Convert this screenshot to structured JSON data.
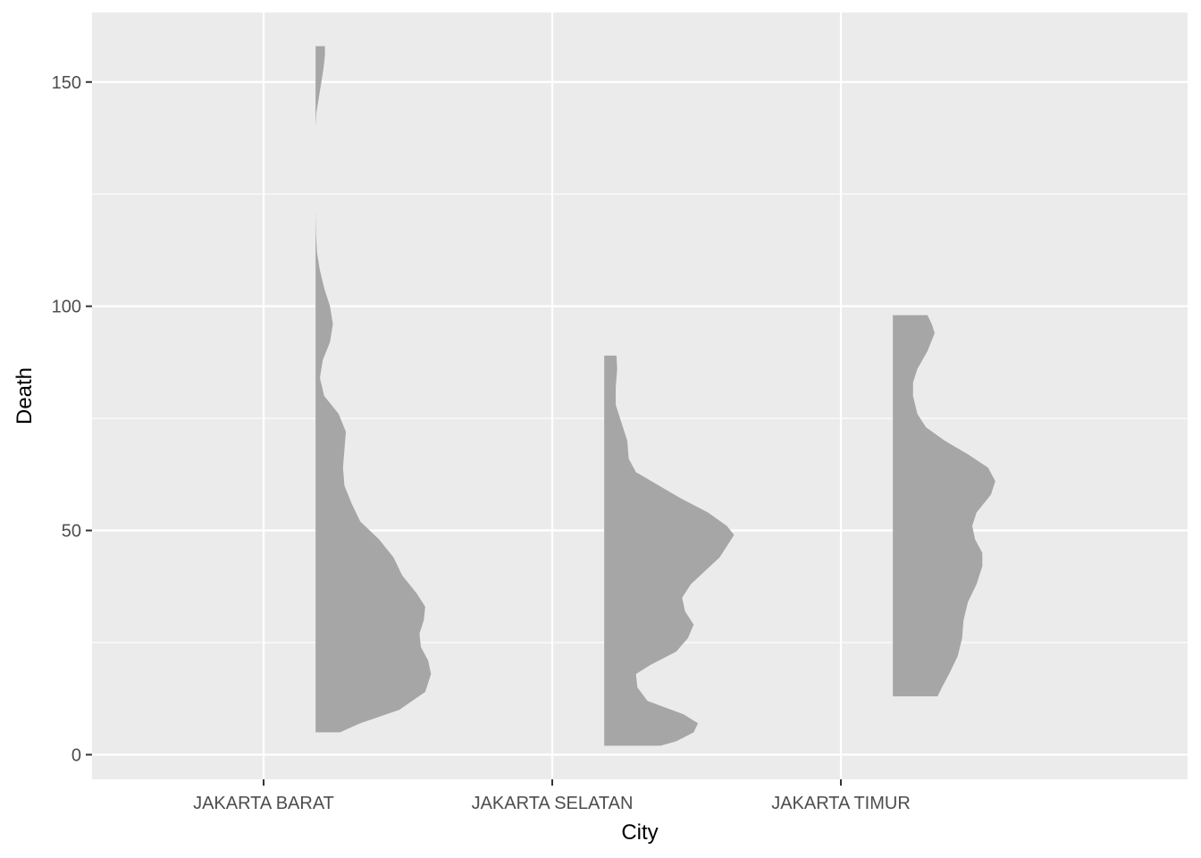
{
  "chart_data": {
    "type": "half-violin",
    "xlabel": "City",
    "ylabel": "Death",
    "categories": [
      "JAKARTA BARAT",
      "JAKARTA SELATAN",
      "JAKARTA TIMUR"
    ],
    "ylim": [
      -5.5,
      165.5
    ],
    "yticks": [
      0,
      50,
      100,
      150
    ],
    "grid": true,
    "legend": "none",
    "colors": {
      "panel": "#ebebeb",
      "grid": "#ffffff",
      "fill": "#a6a6a6",
      "tick_text": "#4d4d4d",
      "title_text": "#000000"
    },
    "series": [
      {
        "category": "JAKARTA BARAT",
        "y_min": 5,
        "y_max": 158,
        "density_profile": [
          {
            "y": 5,
            "width": 0.17
          },
          {
            "y": 7,
            "width": 0.31
          },
          {
            "y": 10,
            "width": 0.58
          },
          {
            "y": 14,
            "width": 0.76
          },
          {
            "y": 18,
            "width": 0.8
          },
          {
            "y": 21,
            "width": 0.78
          },
          {
            "y": 24,
            "width": 0.73
          },
          {
            "y": 27,
            "width": 0.72
          },
          {
            "y": 30,
            "width": 0.75
          },
          {
            "y": 33,
            "width": 0.76
          },
          {
            "y": 36,
            "width": 0.7
          },
          {
            "y": 40,
            "width": 0.6
          },
          {
            "y": 44,
            "width": 0.54
          },
          {
            "y": 48,
            "width": 0.44
          },
          {
            "y": 52,
            "width": 0.31
          },
          {
            "y": 56,
            "width": 0.25
          },
          {
            "y": 60,
            "width": 0.2
          },
          {
            "y": 64,
            "width": 0.19
          },
          {
            "y": 68,
            "width": 0.2
          },
          {
            "y": 72,
            "width": 0.21
          },
          {
            "y": 76,
            "width": 0.16
          },
          {
            "y": 80,
            "width": 0.06
          },
          {
            "y": 84,
            "width": 0.03
          },
          {
            "y": 88,
            "width": 0.05
          },
          {
            "y": 92,
            "width": 0.1
          },
          {
            "y": 96,
            "width": 0.12
          },
          {
            "y": 100,
            "width": 0.1
          },
          {
            "y": 104,
            "width": 0.06
          },
          {
            "y": 108,
            "width": 0.03
          },
          {
            "y": 112,
            "width": 0.01
          },
          {
            "y": 116,
            "width": 0.003
          },
          {
            "y": 121.5,
            "width": 0.0
          },
          {
            "y": 140,
            "width": 0.0
          },
          {
            "y": 143,
            "width": 0.005
          },
          {
            "y": 146,
            "width": 0.02
          },
          {
            "y": 150,
            "width": 0.04
          },
          {
            "y": 153,
            "width": 0.055
          },
          {
            "y": 156,
            "width": 0.065
          },
          {
            "y": 158,
            "width": 0.065
          }
        ]
      },
      {
        "category": "JAKARTA SELATAN",
        "y_min": 2,
        "y_max": 89,
        "density_profile": [
          {
            "y": 2,
            "width": 0.39
          },
          {
            "y": 3,
            "width": 0.5
          },
          {
            "y": 5,
            "width": 0.62
          },
          {
            "y": 7,
            "width": 0.65
          },
          {
            "y": 9,
            "width": 0.55
          },
          {
            "y": 12,
            "width": 0.3
          },
          {
            "y": 15,
            "width": 0.23
          },
          {
            "y": 18,
            "width": 0.22
          },
          {
            "y": 20,
            "width": 0.32
          },
          {
            "y": 23,
            "width": 0.5
          },
          {
            "y": 26,
            "width": 0.58
          },
          {
            "y": 29,
            "width": 0.62
          },
          {
            "y": 32,
            "width": 0.56
          },
          {
            "y": 35,
            "width": 0.54
          },
          {
            "y": 38,
            "width": 0.6
          },
          {
            "y": 41,
            "width": 0.7
          },
          {
            "y": 44,
            "width": 0.8
          },
          {
            "y": 47,
            "width": 0.86
          },
          {
            "y": 49,
            "width": 0.9
          },
          {
            "y": 51,
            "width": 0.85
          },
          {
            "y": 54,
            "width": 0.72
          },
          {
            "y": 57,
            "width": 0.54
          },
          {
            "y": 60,
            "width": 0.38
          },
          {
            "y": 63,
            "width": 0.22
          },
          {
            "y": 66,
            "width": 0.17
          },
          {
            "y": 70,
            "width": 0.16
          },
          {
            "y": 74,
            "width": 0.12
          },
          {
            "y": 78,
            "width": 0.08
          },
          {
            "y": 82,
            "width": 0.08
          },
          {
            "y": 86,
            "width": 0.09
          },
          {
            "y": 89,
            "width": 0.085
          }
        ]
      },
      {
        "category": "JAKARTA TIMUR",
        "y_min": 13,
        "y_max": 98,
        "density_profile": [
          {
            "y": 13,
            "width": 0.31
          },
          {
            "y": 15,
            "width": 0.34
          },
          {
            "y": 18,
            "width": 0.39
          },
          {
            "y": 22,
            "width": 0.45
          },
          {
            "y": 26,
            "width": 0.48
          },
          {
            "y": 30,
            "width": 0.49
          },
          {
            "y": 34,
            "width": 0.52
          },
          {
            "y": 38,
            "width": 0.58
          },
          {
            "y": 42,
            "width": 0.62
          },
          {
            "y": 45,
            "width": 0.62
          },
          {
            "y": 48,
            "width": 0.57
          },
          {
            "y": 51,
            "width": 0.55
          },
          {
            "y": 54,
            "width": 0.58
          },
          {
            "y": 58,
            "width": 0.68
          },
          {
            "y": 61,
            "width": 0.71
          },
          {
            "y": 64,
            "width": 0.66
          },
          {
            "y": 67,
            "width": 0.52
          },
          {
            "y": 70,
            "width": 0.36
          },
          {
            "y": 73,
            "width": 0.23
          },
          {
            "y": 76,
            "width": 0.17
          },
          {
            "y": 80,
            "width": 0.14
          },
          {
            "y": 83,
            "width": 0.14
          },
          {
            "y": 86,
            "width": 0.17
          },
          {
            "y": 90,
            "width": 0.24
          },
          {
            "y": 94,
            "width": 0.29
          },
          {
            "y": 96,
            "width": 0.27
          },
          {
            "y": 98,
            "width": 0.24
          }
        ]
      }
    ]
  }
}
